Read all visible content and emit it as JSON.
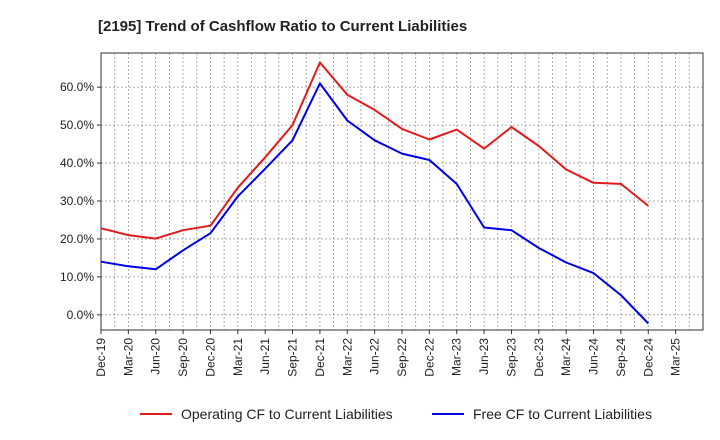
{
  "chart_data": {
    "type": "line",
    "title": "[2195]  Trend of Cashflow Ratio to Current Liabilities",
    "xlabel": "",
    "ylabel": "",
    "x": [
      "Dec-19",
      "Mar-20",
      "Jun-20",
      "Sep-20",
      "Dec-20",
      "Mar-21",
      "Jun-21",
      "Sep-21",
      "Dec-21",
      "Mar-22",
      "Jun-22",
      "Sep-22",
      "Dec-22",
      "Mar-23",
      "Jun-23",
      "Sep-23",
      "Dec-23",
      "Mar-24",
      "Jun-24",
      "Sep-24",
      "Dec-24",
      "Mar-25"
    ],
    "ylim": [
      -4,
      69
    ],
    "yticks": [
      0,
      10,
      20,
      30,
      40,
      50,
      60
    ],
    "ytick_labels": [
      "0.0%",
      "10.0%",
      "20.0%",
      "30.0%",
      "40.0%",
      "50.0%",
      "60.0%"
    ],
    "grid": true,
    "legend_position": "bottom",
    "series": [
      {
        "name": "Operating CF to Current Liabilities",
        "color": "#e31a1c",
        "values": [
          22.8,
          21.0,
          20.1,
          22.3,
          23.5,
          33.5,
          41.5,
          50.0,
          66.5,
          58.0,
          54.0,
          49.0,
          46.2,
          48.8,
          43.8,
          49.5,
          44.5,
          38.3,
          34.8,
          34.5,
          28.7,
          null
        ]
      },
      {
        "name": "Free CF to Current Liabilities",
        "color": "#0000e6",
        "values": [
          14.0,
          12.8,
          12.0,
          17.0,
          21.5,
          31.2,
          38.5,
          46.0,
          61.0,
          51.2,
          46.0,
          42.5,
          40.8,
          34.5,
          23.0,
          22.3,
          17.6,
          13.8,
          11.0,
          5.2,
          -2.3,
          null
        ]
      }
    ]
  }
}
